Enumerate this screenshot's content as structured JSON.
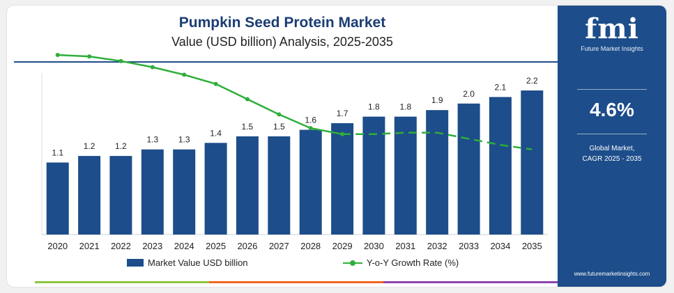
{
  "title": "Pumpkin Seed Protein Market",
  "subtitle": "Value (USD billion) Analysis, 2025-2035",
  "colors": {
    "title": "#1b3d73",
    "bar": "#1d4d8a",
    "line": "#2fae3a",
    "panel": "#1d4d8a",
    "rule": "#1d4d8a",
    "stripe": [
      "#8cc63f",
      "#f26522",
      "#8e44ad"
    ]
  },
  "chart_data": {
    "type": "bar",
    "categories": [
      "2020",
      "2021",
      "2022",
      "2023",
      "2024",
      "2025",
      "2026",
      "2027",
      "2028",
      "2029",
      "2030",
      "2031",
      "2032",
      "2033",
      "2034",
      "2035"
    ],
    "series": [
      {
        "name": "Market Value USD billion",
        "type": "bar",
        "values": [
          1.1,
          1.2,
          1.2,
          1.3,
          1.3,
          1.4,
          1.5,
          1.5,
          1.6,
          1.7,
          1.8,
          1.8,
          1.9,
          2.0,
          2.1,
          2.2
        ],
        "labels": [
          "1.1",
          "1.2",
          "1.2",
          "1.3",
          "1.3",
          "1.4",
          "1.5",
          "1.5",
          "1.6",
          "1.7",
          "1.8",
          "1.8",
          "1.9",
          "2.0",
          "2.1",
          "2.2"
        ]
      },
      {
        "name": "Y-o-Y Growth Rate (%)",
        "type": "line",
        "secondary_axis": true,
        "values": [
          9.5,
          9.4,
          9.1,
          8.7,
          8.2,
          7.6,
          6.6,
          5.6,
          4.7,
          4.3,
          4.3,
          4.4,
          4.4,
          4.0,
          3.6,
          3.3
        ],
        "dashed_from_index": 9
      }
    ],
    "ylim": [
      0,
      2.4
    ],
    "y2lim": [
      0,
      10
    ],
    "grid": false,
    "legend_position": "bottom"
  },
  "legend": {
    "bar_label": "Market Value USD billion",
    "line_label": "Y-o-Y Growth Rate (%)"
  },
  "panel": {
    "logo_text": "fmi",
    "logo_subtitle": "Future Market Insights",
    "cagr_value": "4.6%",
    "cagr_label_line1": "Global Market,",
    "cagr_label_line2": "CAGR 2025 - 2035",
    "website": "www.futuremarketinsights.com"
  }
}
